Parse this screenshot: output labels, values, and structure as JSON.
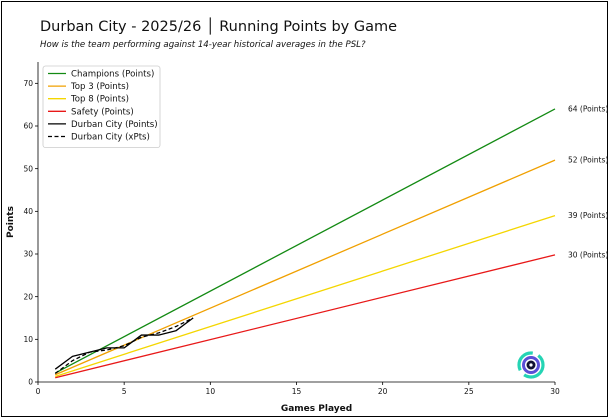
{
  "header": {
    "title": "Durban City - 2025/26 │ Running Points by Game",
    "subtitle": "How is the team performing against 14-year historical averages in the PSL?"
  },
  "colors": {
    "champions": "#138a13",
    "top3": "#f0a000",
    "top8": "#f4d600",
    "safety": "#e81818",
    "team": "#000000",
    "logo_blue": "#5b4fd6",
    "logo_teal": "#25d4b4"
  },
  "logo": {
    "icon": "club-badge-icon"
  },
  "chart_data": {
    "type": "line",
    "xlabel": "Games Played",
    "ylabel": "Points",
    "xlim": [
      0,
      30
    ],
    "ylim": [
      0,
      75
    ],
    "xticks": [
      0,
      5,
      10,
      15,
      20,
      25,
      30
    ],
    "yticks": [
      0,
      10,
      20,
      30,
      40,
      50,
      60,
      70
    ],
    "grid": false,
    "legend_position": "top-left",
    "series": [
      {
        "name": "Champions (Points)",
        "style": "solid",
        "color": "#138a13",
        "end_label": "64 (Points)",
        "x": [
          1,
          30
        ],
        "y": [
          2.1,
          64
        ]
      },
      {
        "name": "Top 3 (Points)",
        "style": "solid",
        "color": "#f0a000",
        "end_label": "52 (Points)",
        "x": [
          1,
          30
        ],
        "y": [
          1.7,
          52
        ]
      },
      {
        "name": "Top 8 (Points)",
        "style": "solid",
        "color": "#f4d600",
        "end_label": "39 (Points)",
        "x": [
          1,
          30
        ],
        "y": [
          1.3,
          39
        ]
      },
      {
        "name": "Safety (Points)",
        "style": "solid",
        "color": "#e81818",
        "end_label": "30 (Points)",
        "x": [
          1,
          30
        ],
        "y": [
          1.0,
          29.8
        ]
      },
      {
        "name": "Durban City (Points)",
        "style": "solid",
        "color": "#000000",
        "x": [
          1,
          2,
          3,
          4,
          5,
          6,
          7,
          8,
          9
        ],
        "y": [
          3,
          6,
          7,
          8,
          8,
          11,
          11,
          12,
          15
        ]
      },
      {
        "name": "Durban City (xPts)",
        "style": "dashed",
        "color": "#000000",
        "x": [
          1,
          2,
          3,
          4,
          5,
          6,
          7,
          8,
          9
        ],
        "y": [
          2,
          5,
          7,
          7.5,
          8.5,
          10.5,
          11.5,
          13,
          15
        ]
      }
    ]
  }
}
